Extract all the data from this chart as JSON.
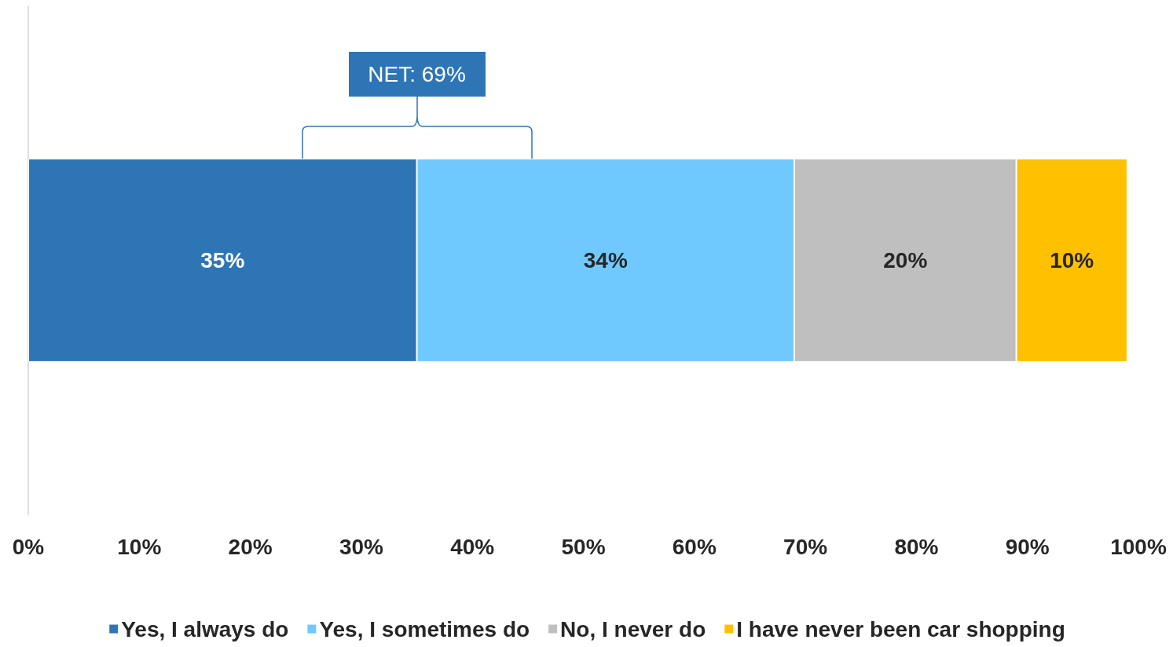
{
  "chart_data": {
    "type": "bar",
    "orientation": "horizontal",
    "stacked": true,
    "categories": [
      null
    ],
    "series": [
      {
        "name": "Yes, I always do",
        "color": "#2e75b6",
        "values": [
          35
        ],
        "value_labels": [
          "35%"
        ]
      },
      {
        "name": "Yes, I sometimes do",
        "color": "#6fc9fe",
        "values": [
          34
        ],
        "value_labels": [
          "34%"
        ]
      },
      {
        "name": "No, I never do",
        "color": "#bfbfbf",
        "values": [
          20
        ],
        "value_labels": [
          "20%"
        ]
      },
      {
        "name": "I have never been car shopping",
        "color": "#ffc000",
        "values": [
          10
        ],
        "value_labels": [
          "10%"
        ]
      }
    ],
    "xlim": [
      0,
      100
    ],
    "xticks": [
      {
        "value": 0,
        "label": "0%"
      },
      {
        "value": 10,
        "label": "10%"
      },
      {
        "value": 20,
        "label": "20%"
      },
      {
        "value": 30,
        "label": "30%"
      },
      {
        "value": 40,
        "label": "40%"
      },
      {
        "value": 50,
        "label": "50%"
      },
      {
        "value": 60,
        "label": "60%"
      },
      {
        "value": 70,
        "label": "70%"
      },
      {
        "value": 80,
        "label": "80%"
      },
      {
        "value": 90,
        "label": "90%"
      },
      {
        "value": 100,
        "label": "100%"
      }
    ],
    "grid": false,
    "legend": "bottom",
    "annotations": [
      "NET: 69%"
    ]
  }
}
